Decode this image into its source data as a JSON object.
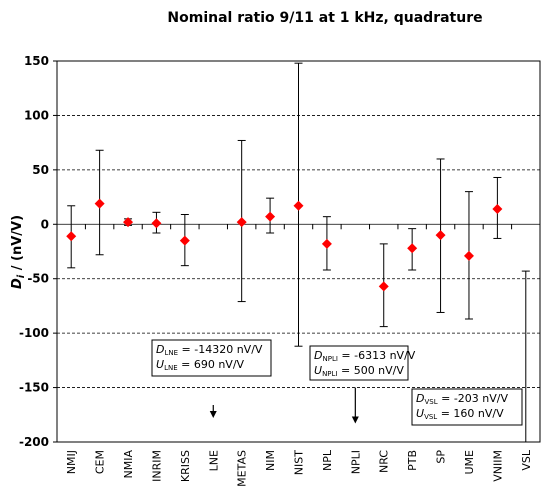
{
  "chart_data": {
    "type": "scatter",
    "title": "Nominal ratio 9/11 at 1 kHz, quadrature",
    "ylabel_main": "D",
    "ylabel_sub": "i",
    "ylabel_rest": " / (nV/V)",
    "ylim": [
      -200,
      150
    ],
    "yticks": [
      150,
      100,
      50,
      0,
      -50,
      -100,
      -150,
      -200
    ],
    "grid": "horizontal-dashed",
    "categories": [
      "NMIJ",
      "CEM",
      "NMIA",
      "INRIM",
      "KRISS",
      "LNE",
      "METAS",
      "NIM",
      "NIST",
      "NPL",
      "NPLI",
      "NRC",
      "PTB",
      "SP",
      "UME",
      "VNIIM",
      "VSL"
    ],
    "points": [
      {
        "lab": "NMIJ",
        "value": -11,
        "upper": 17,
        "lower": -40
      },
      {
        "lab": "CEM",
        "value": 19,
        "upper": 68,
        "lower": -28
      },
      {
        "lab": "NMIA",
        "value": 2,
        "upper": 5,
        "lower": -1
      },
      {
        "lab": "INRIM",
        "value": 1,
        "upper": 11,
        "lower": -8
      },
      {
        "lab": "KRISS",
        "value": -15,
        "upper": 9,
        "lower": -38
      },
      {
        "lab": "LNE",
        "value": null,
        "upper": null,
        "lower": null
      },
      {
        "lab": "METAS",
        "value": 2,
        "upper": 77,
        "lower": -71
      },
      {
        "lab": "NIM",
        "value": 7,
        "upper": 24,
        "lower": -8
      },
      {
        "lab": "NIST",
        "value": 17,
        "upper": 148,
        "lower": -112
      },
      {
        "lab": "NPL",
        "value": -18,
        "upper": 7,
        "lower": -42
      },
      {
        "lab": "NPLI",
        "value": null,
        "upper": null,
        "lower": null
      },
      {
        "lab": "NRC",
        "value": -57,
        "upper": -18,
        "lower": -94
      },
      {
        "lab": "PTB",
        "value": -22,
        "upper": -4,
        "lower": -42
      },
      {
        "lab": "SP",
        "value": -10,
        "upper": 60,
        "lower": -81
      },
      {
        "lab": "UME",
        "value": -29,
        "upper": 30,
        "lower": -87
      },
      {
        "lab": "VNIIM",
        "value": 14,
        "upper": 43,
        "lower": -13
      },
      {
        "lab": "VSL",
        "value": null,
        "upper": -43,
        "lower": -200
      }
    ],
    "offscale_arrows": [
      {
        "lab": "LNE",
        "y_from": -166,
        "y_to": -178
      },
      {
        "lab": "NPLI",
        "y_from": -150,
        "y_to": -183
      }
    ],
    "annotations": [
      {
        "lab": "LNE",
        "d_sub": "LNE",
        "d_value": " = -14320 nV/V",
        "u_sub": "LNE",
        "u_value": " = 690 nV/V"
      },
      {
        "lab": "NPLI",
        "d_sub": "NPLI",
        "d_value": " = -6313 nV/V",
        "u_sub": "NPLI",
        "u_value": " = 500 nV/V"
      },
      {
        "lab": "VSL",
        "d_sub": "VSL",
        "d_value": " = -203 nV/V",
        "u_sub": "VSL",
        "u_value": " = 160 nV/V"
      }
    ],
    "d_symbol": "D",
    "u_symbol": "U",
    "marker_color": "#ff0000"
  }
}
